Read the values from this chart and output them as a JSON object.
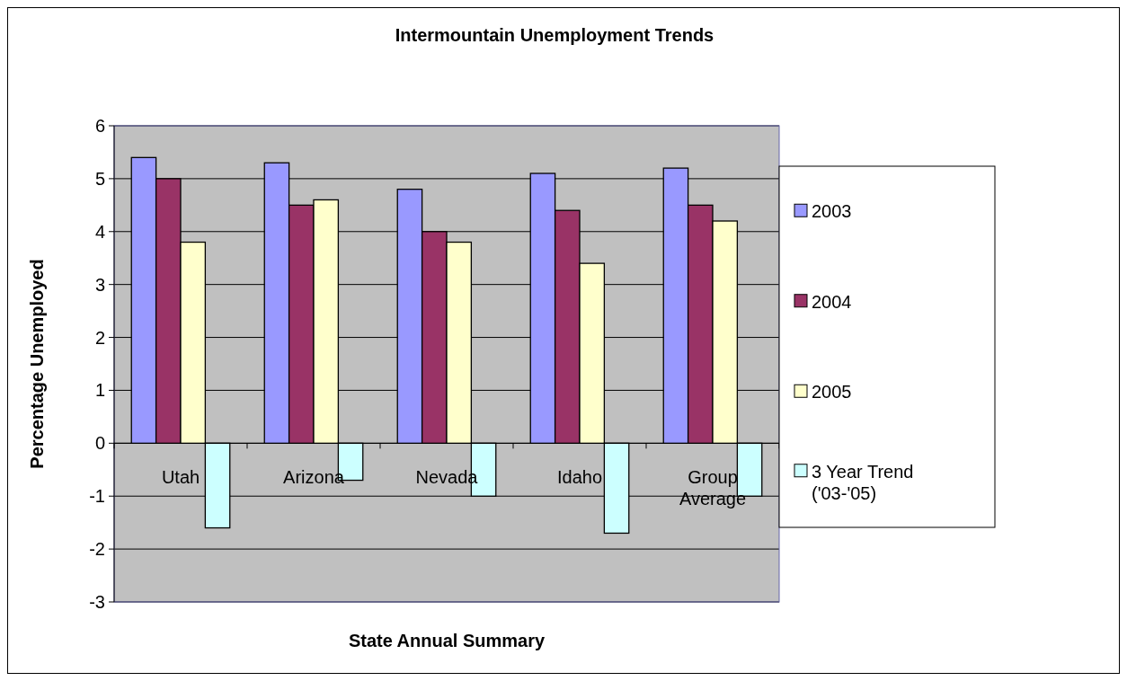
{
  "chart_data": {
    "type": "bar",
    "title": "Intermountain Unemployment Trends",
    "xlabel": "State Annual Summary",
    "ylabel": "Percentage Unemployed",
    "categories": [
      "Utah",
      "Arizona",
      "Nevada",
      "Idaho",
      "Group Average"
    ],
    "series": [
      {
        "name": "2003",
        "color": "#9999ff",
        "values": [
          5.4,
          5.3,
          4.8,
          5.1,
          5.2
        ]
      },
      {
        "name": "2004",
        "color": "#993366",
        "values": [
          5.0,
          4.5,
          4.0,
          4.4,
          4.5
        ]
      },
      {
        "name": "2005",
        "color": "#ffffcc",
        "values": [
          3.8,
          4.6,
          3.8,
          3.4,
          4.2
        ]
      },
      {
        "name": "3 Year Trend ('03-'05)",
        "color": "#ccffff",
        "values": [
          -1.6,
          -0.7,
          -1.0,
          -1.7,
          -1.0
        ]
      }
    ],
    "ylim": [
      -3,
      6
    ],
    "yticks": [
      -3,
      -2,
      -1,
      0,
      1,
      2,
      3,
      4,
      5,
      6
    ],
    "grid": "y",
    "legend": "right"
  }
}
